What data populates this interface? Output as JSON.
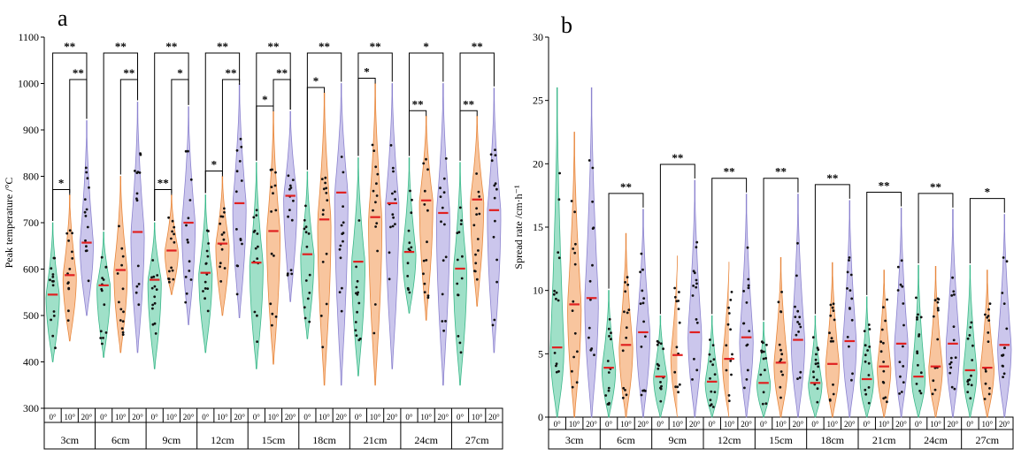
{
  "colors": {
    "g0": "#7FD6B6",
    "g10": "#F5B27E",
    "g20": "#B9B3E6",
    "median": "#E02020"
  },
  "angles": [
    "0°",
    "10°",
    "20°"
  ],
  "chart_data": [
    {
      "panel": "a",
      "type": "violin",
      "ylabel": "Peak temperature /°C",
      "ylim": [
        300,
        1100
      ],
      "yticks": [
        300,
        400,
        500,
        600,
        700,
        800,
        900,
        1000,
        1100
      ],
      "categories": [
        "3cm",
        "6cm",
        "9cm",
        "12cm",
        "15cm",
        "18cm",
        "21cm",
        "24cm",
        "27cm"
      ],
      "series": [
        {
          "name": "0°",
          "medians": [
            545,
            565,
            577,
            592,
            614,
            632,
            616,
            637,
            601
          ],
          "range": [
            [
              400,
              700
            ],
            [
              410,
              680
            ],
            [
              385,
              700
            ],
            [
              420,
              760
            ],
            [
              385,
              830
            ],
            [
              450,
              810
            ],
            [
              370,
              840
            ],
            [
              505,
              840
            ],
            [
              350,
              830
            ]
          ]
        },
        {
          "name": "10°",
          "medians": [
            587,
            598,
            640,
            655,
            682,
            707,
            712,
            748,
            750
          ],
          "range": [
            [
              445,
              760
            ],
            [
              420,
              800
            ],
            [
              545,
              760
            ],
            [
              500,
              800
            ],
            [
              395,
              940
            ],
            [
              350,
              980
            ],
            [
              350,
              1000
            ],
            [
              490,
              930
            ],
            [
              520,
              930
            ]
          ]
        },
        {
          "name": "20°",
          "medians": [
            657,
            680,
            700,
            742,
            758,
            765,
            742,
            721,
            727
          ],
          "range": [
            [
              500,
              920
            ],
            [
              420,
              960
            ],
            [
              480,
              950
            ],
            [
              495,
              1000
            ],
            [
              530,
              940
            ],
            [
              350,
              1000
            ],
            [
              385,
              1000
            ],
            [
              350,
              1000
            ],
            [
              420,
              990
            ]
          ]
        }
      ],
      "significance": [
        [
          {
            "pair": "0-10",
            "label": "*"
          },
          {
            "pair": "10-20",
            "label": "**"
          },
          {
            "pair": "0-20",
            "label": "**"
          }
        ],
        [
          {
            "pair": "10-20",
            "label": "**"
          },
          {
            "pair": "0-20",
            "label": "**"
          }
        ],
        [
          {
            "pair": "0-10",
            "label": "**"
          },
          {
            "pair": "10-20",
            "label": "*"
          },
          {
            "pair": "0-20",
            "label": "**"
          }
        ],
        [
          {
            "pair": "0-10",
            "label": "*"
          },
          {
            "pair": "10-20",
            "label": "**"
          },
          {
            "pair": "0-20",
            "label": "**"
          }
        ],
        [
          {
            "pair": "0-10",
            "label": "*"
          },
          {
            "pair": "10-20",
            "label": "**"
          },
          {
            "pair": "0-20",
            "label": "**"
          }
        ],
        [
          {
            "pair": "0-10",
            "label": "*"
          },
          {
            "pair": "0-20",
            "label": "**"
          }
        ],
        [
          {
            "pair": "0-10",
            "label": "*"
          },
          {
            "pair": "0-20",
            "label": "**"
          }
        ],
        [
          {
            "pair": "0-10",
            "label": "**"
          },
          {
            "pair": "0-20",
            "label": "*"
          }
        ],
        [
          {
            "pair": "0-10",
            "label": "**"
          },
          {
            "pair": "0-20",
            "label": "**"
          }
        ]
      ]
    },
    {
      "panel": "b",
      "type": "violin",
      "ylabel": "Spread rate /cm·h⁻¹",
      "ylim": [
        0,
        30
      ],
      "yticks": [
        0,
        5,
        10,
        15,
        20,
        25,
        30
      ],
      "categories": [
        "3cm",
        "6cm",
        "9cm",
        "12cm",
        "15cm",
        "18cm",
        "21cm",
        "24cm",
        "27cm"
      ],
      "series": [
        {
          "name": "0°",
          "medians": [
            5.5,
            3.9,
            3.2,
            2.8,
            2.7,
            2.7,
            3.0,
            3.2,
            3.7
          ],
          "range": [
            [
              0,
              26
            ],
            [
              0,
              10
            ],
            [
              0,
              8
            ],
            [
              0,
              8
            ],
            [
              0,
              7.5
            ],
            [
              0,
              8
            ],
            [
              0,
              9.5
            ],
            [
              0,
              12
            ],
            [
              0,
              12
            ]
          ]
        },
        {
          "name": "10°",
          "medians": [
            8.9,
            5.7,
            4.9,
            4.6,
            4.3,
            4.2,
            4.0,
            4.0,
            3.9
          ],
          "range": [
            [
              0,
              22.5
            ],
            [
              0,
              14.5
            ],
            [
              0,
              13.3
            ],
            [
              0,
              12.8
            ],
            [
              0,
              12.6
            ],
            [
              0,
              12.2
            ],
            [
              0,
              11.6
            ],
            [
              0,
              11.9
            ],
            [
              0,
              11.6
            ]
          ]
        },
        {
          "name": "20°",
          "medians": [
            9.4,
            6.7,
            6.7,
            6.3,
            6.1,
            6.0,
            5.8,
            5.8,
            5.7
          ],
          "range": [
            [
              0,
              26
            ],
            [
              0,
              16.4
            ],
            [
              0,
              18.7
            ],
            [
              0,
              17.6
            ],
            [
              0,
              17.6
            ],
            [
              0,
              17.1
            ],
            [
              0,
              16.5
            ],
            [
              0,
              16.4
            ],
            [
              0,
              16
            ]
          ]
        }
      ],
      "significance": [
        [],
        [
          {
            "pair": "0-20",
            "label": "**"
          }
        ],
        [
          {
            "pair": "0-20",
            "label": "**"
          }
        ],
        [
          {
            "pair": "0-20",
            "label": "**"
          }
        ],
        [
          {
            "pair": "0-20",
            "label": "**"
          }
        ],
        [
          {
            "pair": "0-20",
            "label": "**"
          }
        ],
        [
          {
            "pair": "0-20",
            "label": "**"
          }
        ],
        [
          {
            "pair": "0-20",
            "label": "**"
          }
        ],
        [
          {
            "pair": "0-20",
            "label": "*"
          }
        ]
      ]
    }
  ]
}
